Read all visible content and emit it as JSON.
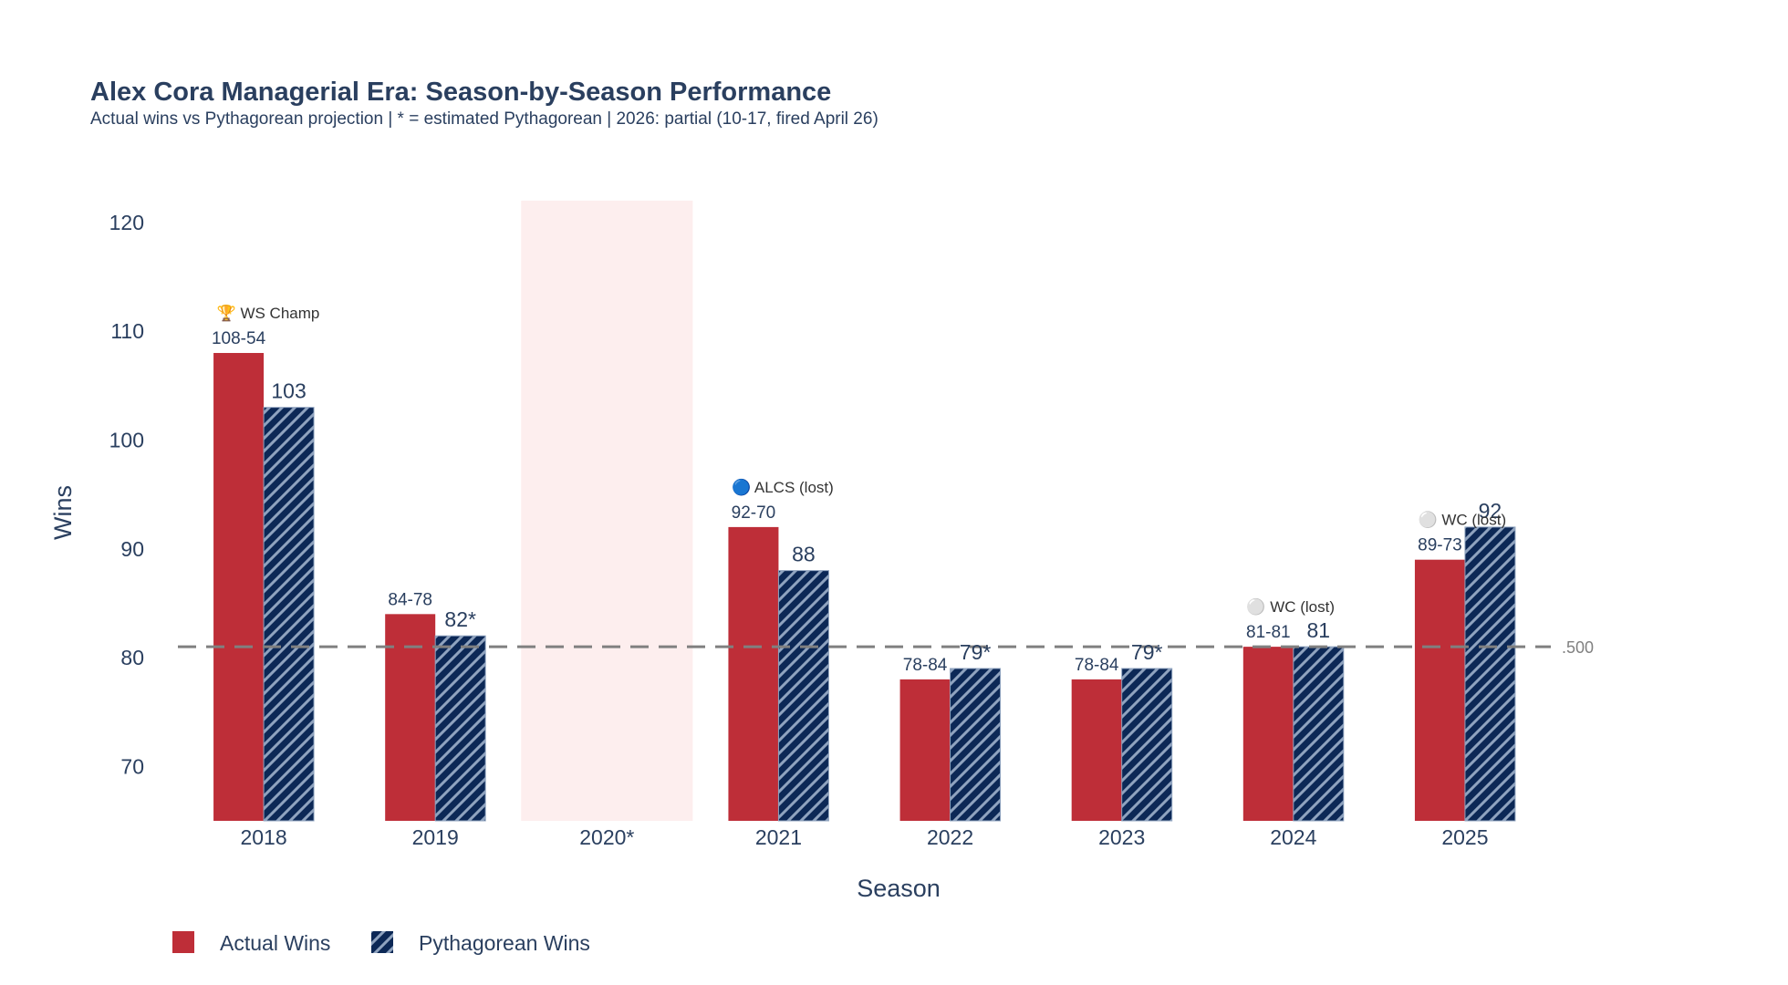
{
  "colors": {
    "actual": "#be2e38",
    "pythagorean": "#0c2856",
    "hatch": "#8fa3bf",
    "shade": "#fdeeee",
    "reference": "#808080",
    "text": "#2a3f5f"
  },
  "chart_data": {
    "type": "bar",
    "title": "Alex Cora Managerial Era: Season-by-Season Performance",
    "subtitle": "Actual wins vs Pythagorean projection | * = estimated Pythagorean | 2026: partial (10-17, fired April 26)",
    "xlabel": "Season",
    "ylabel": "Wins",
    "ylim": [
      65,
      122
    ],
    "yticks": [
      70,
      80,
      90,
      100,
      110,
      120
    ],
    "categories": [
      "2018",
      "2019",
      "2020*",
      "2021",
      "2022",
      "2023",
      "2024",
      "2025"
    ],
    "series": [
      {
        "name": "Actual Wins",
        "values": [
          108,
          84,
          null,
          92,
          78,
          78,
          81,
          89
        ]
      },
      {
        "name": "Pythagorean Wins",
        "values": [
          103,
          82,
          null,
          88,
          79,
          79,
          81,
          92
        ]
      }
    ],
    "record_labels": [
      "108-54",
      "84-78",
      "",
      "92-70",
      "78-84",
      "78-84",
      "81-81",
      "89-73"
    ],
    "pythagorean_labels": [
      "103",
      "82*",
      "",
      "88",
      "79*",
      "79*",
      "81",
      "92"
    ],
    "annotations": [
      {
        "category": "2018",
        "text": "🏆 WS Champ"
      },
      {
        "category": "2021",
        "text": "🔵 ALCS (lost)"
      },
      {
        "category": "2024",
        "text": "⚪ WC (lost)"
      },
      {
        "category": "2025",
        "text": "⚪ WC (lost)"
      }
    ],
    "shaded_category": "2020*",
    "reference_line": {
      "value": 81,
      "label": ".500",
      "style": "dashed"
    },
    "legend": {
      "position": "bottom-left",
      "entries": [
        "Actual Wins",
        "Pythagorean Wins"
      ]
    },
    "grid": false
  }
}
